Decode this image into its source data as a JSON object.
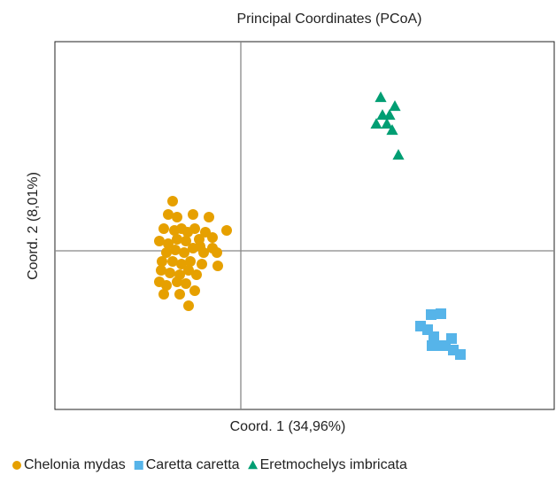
{
  "chart_data": {
    "type": "scatter",
    "title": "Principal Coordinates (PCoA)",
    "x_label": "Coord. 1 (34,96%)",
    "y_label": "Coord. 2 (8,01%)",
    "xlim": [
      -2.1,
      3.54
    ],
    "ylim": [
      -1.79,
      2.36
    ],
    "xticks": [
      0
    ],
    "yticks": [
      0
    ],
    "legend": "bottom",
    "series": [
      {
        "name": "Chelonia mydas",
        "color": "#E6A000",
        "marker": "circle",
        "x": [
          -0.77,
          -0.82,
          -0.72,
          -0.54,
          -0.36,
          -0.16,
          -0.87,
          -0.67,
          -0.52,
          -0.4,
          -0.32,
          -0.92,
          -0.82,
          -0.72,
          -0.62,
          -0.47,
          -0.84,
          -0.74,
          -0.64,
          -0.54,
          -0.42,
          -0.27,
          -0.89,
          -0.77,
          -0.67,
          -0.57,
          -0.44,
          -0.26,
          -0.9,
          -0.8,
          -0.69,
          -0.59,
          -0.5,
          -0.92,
          -0.84,
          -0.72,
          -0.62,
          -0.52,
          -0.87,
          -0.69,
          -0.59,
          -0.32,
          -0.75,
          -0.46,
          -0.6
        ],
        "values": [
          0.56,
          0.41,
          0.38,
          0.41,
          0.38,
          0.23,
          0.25,
          0.25,
          0.25,
          0.21,
          0.15,
          0.11,
          0.08,
          0.13,
          0.11,
          0.13,
          -0.02,
          0.01,
          -0.02,
          0.03,
          -0.02,
          -0.02,
          -0.12,
          -0.12,
          -0.15,
          -0.12,
          -0.15,
          -0.17,
          -0.22,
          -0.25,
          -0.27,
          -0.22,
          -0.27,
          -0.35,
          -0.39,
          -0.35,
          -0.37,
          -0.45,
          -0.49,
          -0.49,
          -0.62,
          0.03,
          0.23,
          0.05,
          0.21
        ]
      },
      {
        "name": "Caretta caretta",
        "color": "#56B4E9",
        "marker": "square",
        "x": [
          2.15,
          2.26,
          2.03,
          2.11,
          2.18,
          2.38,
          2.23,
          2.31,
          2.4,
          2.48,
          2.16
        ],
        "values": [
          -0.72,
          -0.71,
          -0.85,
          -0.89,
          -0.97,
          -0.99,
          -1.07,
          -1.07,
          -1.12,
          -1.17,
          -1.07
        ]
      },
      {
        "name": "Eretmochelys imbricata",
        "color": "#009E73",
        "marker": "triangle",
        "x": [
          1.58,
          1.74,
          1.6,
          1.68,
          1.53,
          1.65,
          1.71,
          1.78
        ],
        "values": [
          1.73,
          1.63,
          1.53,
          1.53,
          1.43,
          1.43,
          1.36,
          1.08
        ]
      }
    ]
  }
}
